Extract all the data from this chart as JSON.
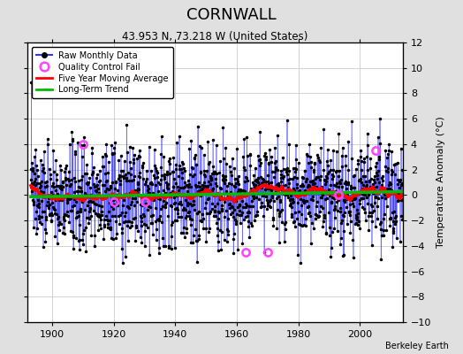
{
  "title": "CORNWALL",
  "subtitle": "43.953 N, 73.218 W (United States)",
  "ylabel": "Temperature Anomaly (°C)",
  "credit": "Berkeley Earth",
  "xlim": [
    1892,
    2014
  ],
  "ylim": [
    -10,
    12
  ],
  "yticks": [
    -10,
    -8,
    -6,
    -4,
    -2,
    0,
    2,
    4,
    6,
    8,
    10,
    12
  ],
  "xticks": [
    1900,
    1920,
    1940,
    1960,
    1980,
    2000
  ],
  "start_year": 1893,
  "end_year": 2013,
  "background_color": "#e0e0e0",
  "plot_bg_color": "#ffffff",
  "raw_color": "#3333ff",
  "ma_color": "#ff0000",
  "trend_color": "#00bb00",
  "qc_color": "#ff44ff",
  "seed": 137
}
